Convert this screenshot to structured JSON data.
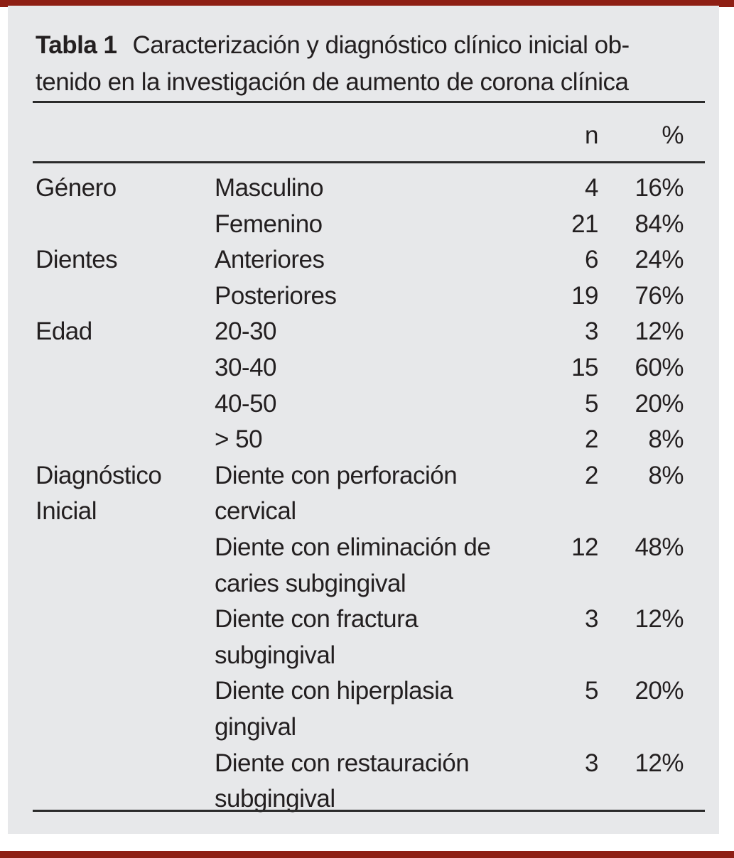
{
  "colors": {
    "page_bg": "#ffffff",
    "panel_bg": "#e7e8ea",
    "text": "#231f20",
    "rule": "#2b2b2b",
    "accent_bar": "#8e1f14"
  },
  "table": {
    "label": "Tabla 1",
    "title": "Caracterización y diagnóstico clínico inicial ob-\ntenido en la investigación de aumento de corona clínica",
    "header": {
      "n": "n",
      "pct": "%"
    },
    "rows": [
      {
        "category": "Género",
        "label": "Masculino",
        "n": "4",
        "pct": "16%"
      },
      {
        "category": "",
        "label": "Femenino",
        "n": "21",
        "pct": "84%"
      },
      {
        "category": "Dientes",
        "label": "Anteriores",
        "n": "6",
        "pct": "24%"
      },
      {
        "category": "",
        "label": "Posteriores",
        "n": "19",
        "pct": "76%"
      },
      {
        "category": "Edad",
        "label": "20-30",
        "n": "3",
        "pct": "12%"
      },
      {
        "category": "",
        "label": "30-40",
        "n": "15",
        "pct": "60%"
      },
      {
        "category": "",
        "label": "40-50",
        "n": "5",
        "pct": "20%"
      },
      {
        "category": "",
        "label": "> 50",
        "n": "2",
        "pct": "8%"
      },
      {
        "category": "Diagnóstico\nInicial",
        "label": "Diente con perforación\ncervical",
        "n": "2",
        "pct": "8%"
      },
      {
        "category": "",
        "label": "Diente con eliminación de\ncaries subgingival",
        "n": "12",
        "pct": "48%"
      },
      {
        "category": "",
        "label": "Diente con fractura\nsubgingival",
        "n": "3",
        "pct": "12%"
      },
      {
        "category": "",
        "label": "Diente con hiperplasia\ngingival",
        "n": "5",
        "pct": "20%"
      },
      {
        "category": "",
        "label": "Diente con restauración\nsubgingival",
        "n": "3",
        "pct": "12%"
      }
    ]
  }
}
